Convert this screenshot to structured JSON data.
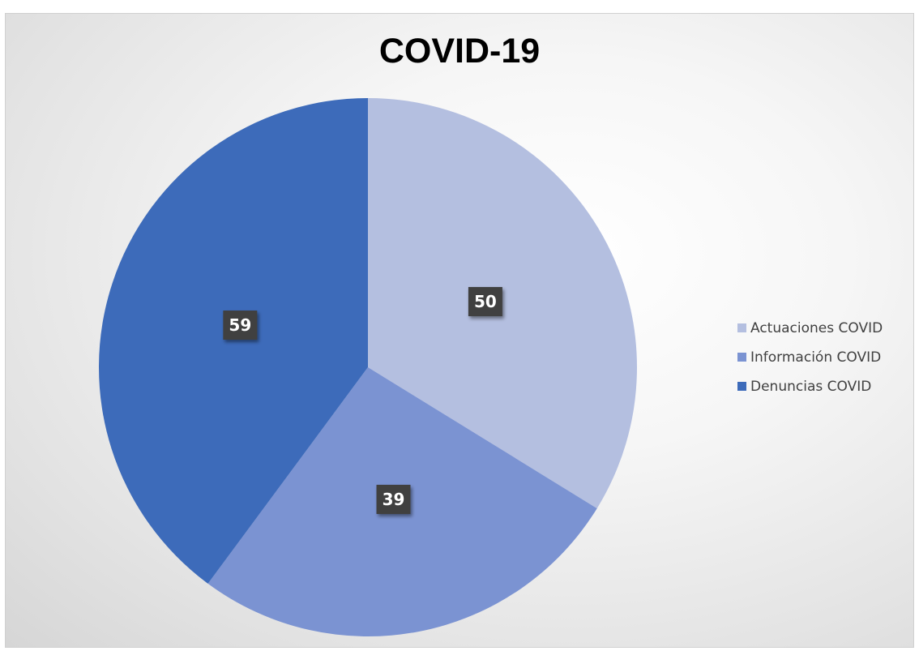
{
  "chart_data": {
    "type": "pie",
    "title": "COVID-19",
    "categories": [
      "Actuaciones COVID",
      "Información COVID",
      "Denuncias COVID"
    ],
    "values": [
      50,
      39,
      59
    ],
    "colors": [
      "#b4bfe0",
      "#7b93d2",
      "#3d6bba"
    ],
    "data_labels": [
      "50",
      "39",
      "59"
    ],
    "legend_position": "right",
    "start_angle_deg": 0,
    "direction": "clockwise"
  }
}
